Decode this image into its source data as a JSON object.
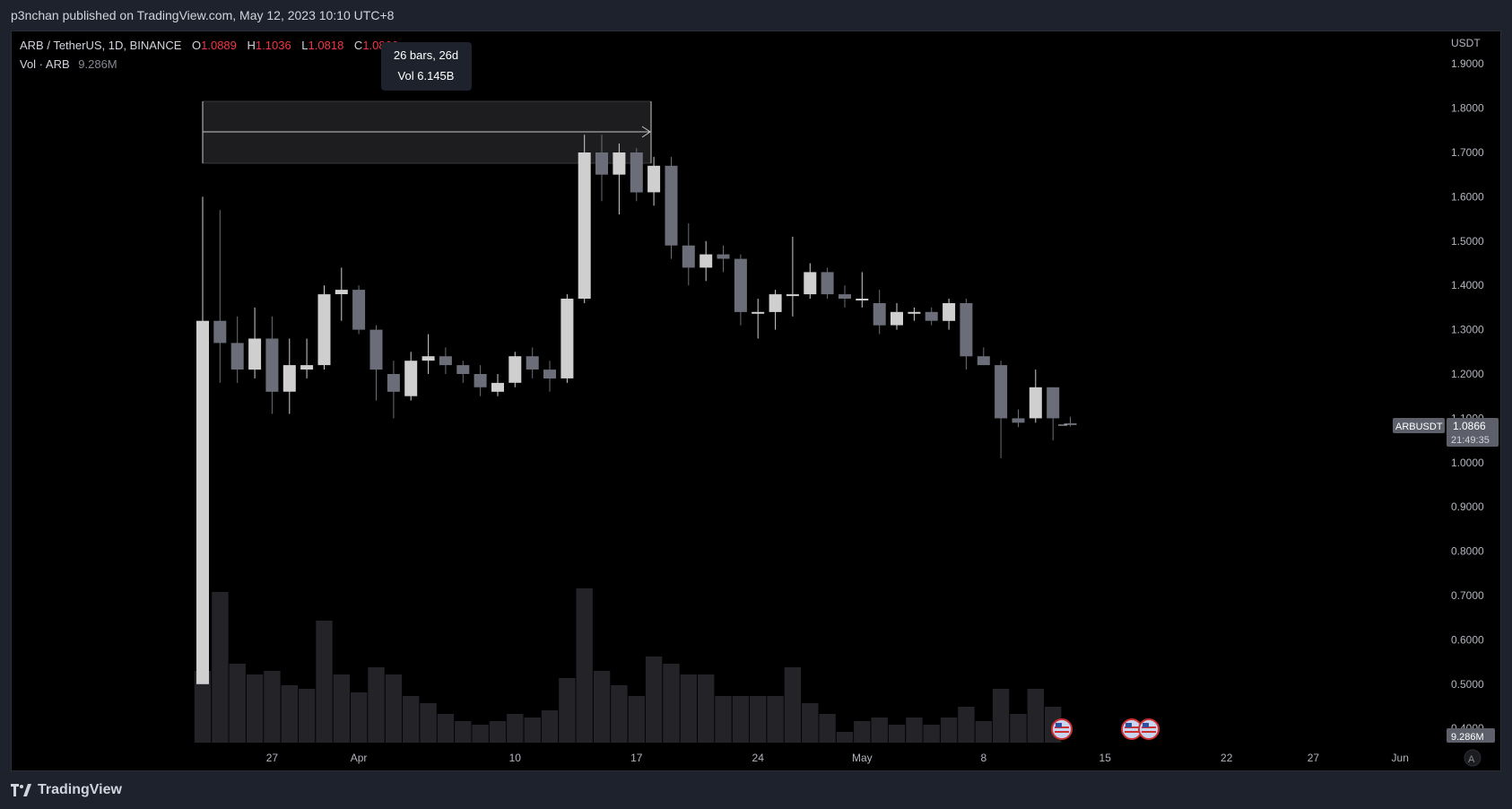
{
  "header": {
    "published_text": "p3nchan published on TradingView.com, May 12, 2023 10:10 UTC+8"
  },
  "footer": {
    "brand": "TradingView"
  },
  "legend": {
    "symbol_line": "ARB / TetherUS, 1D, BINANCE",
    "o_label": "O",
    "o_value": "1.0889",
    "h_label": "H",
    "h_value": "1.1036",
    "l_label": "L",
    "l_value": "1.0818",
    "c_label": "C",
    "c_value": "1.0866",
    "vol_label": "Vol · ARB",
    "vol_value": "9.286M"
  },
  "measure_tooltip": {
    "line1": "26 bars, 26d",
    "line2": "Vol 6.145B"
  },
  "price_scale": {
    "currency": "USDT",
    "ticks": [
      "1.9000",
      "1.8000",
      "1.7000",
      "1.6000",
      "1.5000",
      "1.4000",
      "1.3000",
      "1.2000",
      "1.1000",
      "1.0000",
      "0.9000",
      "0.8000",
      "0.7000",
      "0.6000",
      "0.5000",
      "0.4000"
    ],
    "tick_values": [
      1.9,
      1.8,
      1.7,
      1.6,
      1.5,
      1.4,
      1.3,
      1.2,
      1.1,
      1.0,
      0.9,
      0.8,
      0.7,
      0.6,
      0.5,
      0.4
    ],
    "last_price_symbol": "ARBUSDT",
    "last_price": "1.0866",
    "countdown": "21:49:35",
    "volume_badge": "9.286M"
  },
  "time_scale": {
    "labels": [
      "27",
      "Apr",
      "10",
      "17",
      "24",
      "May",
      "8",
      "15",
      "22",
      "27",
      "Jun"
    ],
    "label_day_index": [
      4,
      9,
      18,
      25,
      32,
      38,
      45,
      52,
      59,
      64,
      69
    ]
  },
  "colors": {
    "up": "#cfcfcf",
    "down": "#6b6e78",
    "volume": "#242428",
    "legend_red": "#f23645",
    "text": "#d1d4dc",
    "muted": "#868993"
  },
  "chart_data": {
    "type": "candlestick",
    "symbol": "ARB / TetherUS",
    "interval": "1D",
    "exchange": "BINANCE",
    "y_unit": "USDT",
    "ylim": [
      0.38,
      1.96
    ],
    "start_date": "2023-03-23",
    "ohlc": [
      [
        0.5,
        1.6,
        0.5,
        1.32
      ],
      [
        1.32,
        1.57,
        1.18,
        1.27
      ],
      [
        1.27,
        1.33,
        1.18,
        1.21
      ],
      [
        1.21,
        1.35,
        1.19,
        1.28
      ],
      [
        1.28,
        1.33,
        1.11,
        1.16
      ],
      [
        1.16,
        1.28,
        1.11,
        1.22
      ],
      [
        1.21,
        1.28,
        1.19,
        1.22
      ],
      [
        1.22,
        1.4,
        1.21,
        1.38
      ],
      [
        1.38,
        1.44,
        1.32,
        1.39
      ],
      [
        1.39,
        1.4,
        1.29,
        1.3
      ],
      [
        1.3,
        1.31,
        1.14,
        1.21
      ],
      [
        1.2,
        1.23,
        1.1,
        1.16
      ],
      [
        1.15,
        1.25,
        1.14,
        1.23
      ],
      [
        1.23,
        1.29,
        1.2,
        1.24
      ],
      [
        1.24,
        1.26,
        1.2,
        1.22
      ],
      [
        1.22,
        1.23,
        1.18,
        1.2
      ],
      [
        1.2,
        1.22,
        1.15,
        1.17
      ],
      [
        1.16,
        1.2,
        1.15,
        1.18
      ],
      [
        1.18,
        1.25,
        1.17,
        1.24
      ],
      [
        1.24,
        1.26,
        1.19,
        1.21
      ],
      [
        1.21,
        1.23,
        1.16,
        1.19
      ],
      [
        1.19,
        1.38,
        1.18,
        1.37
      ],
      [
        1.37,
        1.74,
        1.36,
        1.7
      ],
      [
        1.7,
        1.74,
        1.59,
        1.65
      ],
      [
        1.65,
        1.72,
        1.56,
        1.7
      ],
      [
        1.7,
        1.71,
        1.59,
        1.61
      ],
      [
        1.61,
        1.69,
        1.58,
        1.67
      ],
      [
        1.67,
        1.69,
        1.46,
        1.49
      ],
      [
        1.49,
        1.54,
        1.4,
        1.44
      ],
      [
        1.44,
        1.5,
        1.41,
        1.47
      ],
      [
        1.47,
        1.49,
        1.43,
        1.46
      ],
      [
        1.46,
        1.47,
        1.31,
        1.34
      ],
      [
        1.34,
        1.37,
        1.28,
        1.34
      ],
      [
        1.34,
        1.39,
        1.3,
        1.38
      ],
      [
        1.38,
        1.51,
        1.33,
        1.38
      ],
      [
        1.38,
        1.45,
        1.37,
        1.43
      ],
      [
        1.43,
        1.44,
        1.37,
        1.38
      ],
      [
        1.38,
        1.4,
        1.35,
        1.37
      ],
      [
        1.37,
        1.43,
        1.35,
        1.37
      ],
      [
        1.36,
        1.39,
        1.29,
        1.31
      ],
      [
        1.31,
        1.36,
        1.3,
        1.34
      ],
      [
        1.34,
        1.35,
        1.32,
        1.34
      ],
      [
        1.34,
        1.35,
        1.31,
        1.32
      ],
      [
        1.32,
        1.37,
        1.3,
        1.36
      ],
      [
        1.36,
        1.37,
        1.21,
        1.24
      ],
      [
        1.24,
        1.26,
        1.22,
        1.22
      ],
      [
        1.22,
        1.23,
        1.01,
        1.1
      ],
      [
        1.1,
        1.12,
        1.08,
        1.09
      ],
      [
        1.1,
        1.21,
        1.09,
        1.17
      ],
      [
        1.17,
        1.17,
        1.05,
        1.1
      ],
      [
        1.0889,
        1.1036,
        1.0818,
        1.0866
      ]
    ],
    "volume_relative": [
      20,
      42,
      22,
      19,
      20,
      16,
      15,
      34,
      19,
      14,
      21,
      19,
      13,
      11,
      8,
      6,
      5,
      6,
      8,
      7,
      9,
      18,
      43,
      20,
      16,
      13,
      24,
      22,
      19,
      19,
      13,
      13,
      13,
      13,
      21,
      11,
      8,
      3,
      6,
      7,
      5,
      7,
      5,
      7,
      10,
      6,
      15,
      8,
      15,
      10,
      0
    ]
  }
}
